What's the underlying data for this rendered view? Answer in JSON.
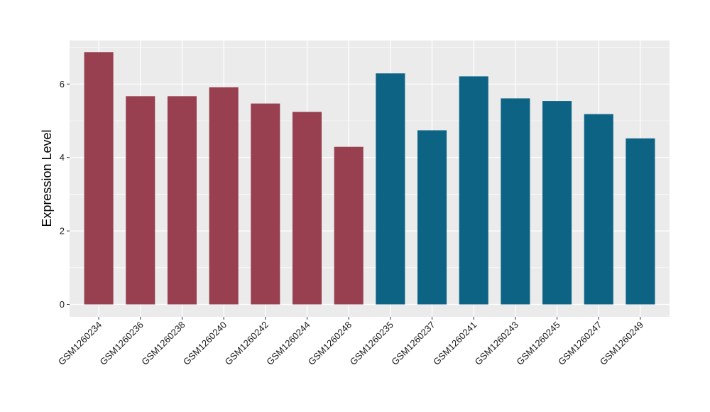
{
  "chart_data": {
    "type": "bar",
    "title": "",
    "xlabel": "",
    "ylabel": "Expression Level",
    "ylim": [
      0,
      7.2
    ],
    "yticks": [
      0,
      2,
      4,
      6
    ],
    "grid": true,
    "categories": [
      "GSM1260234",
      "GSM1260236",
      "GSM1260238",
      "GSM1260240",
      "GSM1260242",
      "GSM1260244",
      "GSM1260248",
      "GSM1260235",
      "GSM1260237",
      "GSM1260241",
      "GSM1260243",
      "GSM1260245",
      "GSM1260247",
      "GSM1260249"
    ],
    "values": [
      6.87,
      5.67,
      5.67,
      5.91,
      5.47,
      5.24,
      4.29,
      6.29,
      4.74,
      6.21,
      5.61,
      5.54,
      5.18,
      4.52
    ],
    "bar_colors": [
      "#98404F",
      "#98404F",
      "#98404F",
      "#98404F",
      "#98404F",
      "#98404F",
      "#98404F",
      "#0C6384",
      "#0C6384",
      "#0C6384",
      "#0C6384",
      "#0C6384",
      "#0C6384",
      "#0C6384"
    ],
    "colors": {
      "panel_bg": "#EBEBEB",
      "grid": "#FFFFFF",
      "group_a": "#98404F",
      "group_b": "#0C6384"
    }
  }
}
